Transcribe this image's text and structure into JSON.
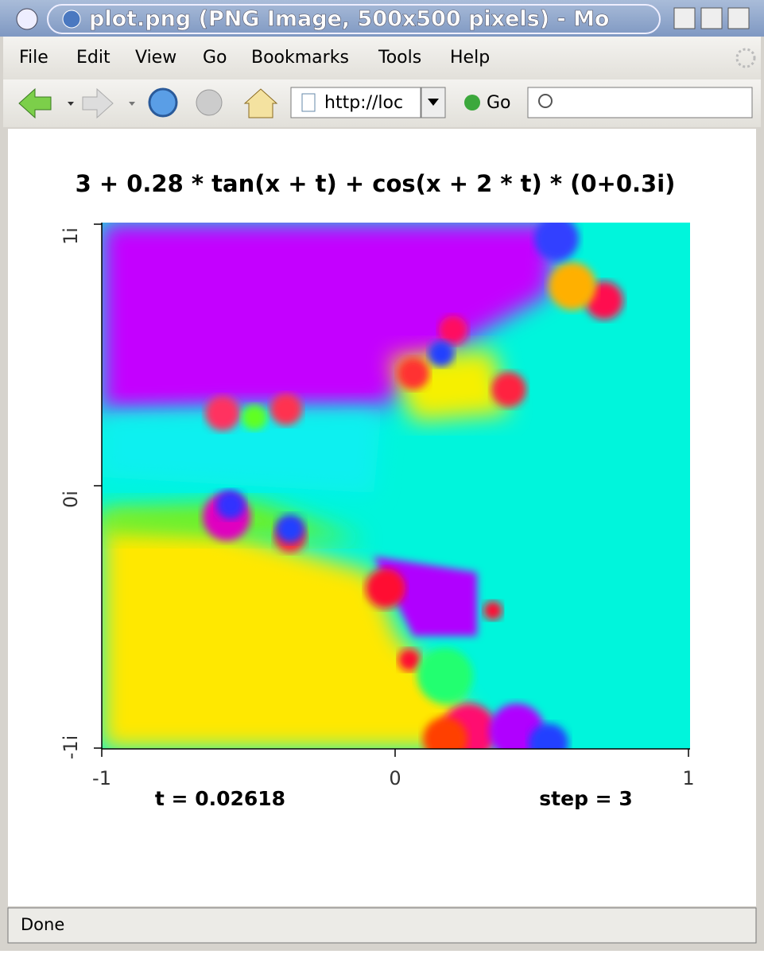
{
  "window": {
    "title": "plot.png (PNG Image, 500x500 pixels) - Mo"
  },
  "menu": [
    "File",
    "Edit",
    "View",
    "Go",
    "Bookmarks",
    "Tools",
    "Help"
  ],
  "toolbar": {
    "url": "http://loc",
    "go": "Go"
  },
  "plot": {
    "title": "3 + 0.28 * tan(x + t) + cos(x + 2 * t) * (0+0.3i)",
    "yticks": [
      "1i",
      "0i",
      "-1i"
    ],
    "xticks": [
      "-1",
      "0",
      "1"
    ],
    "annotations": [
      "t = 0.02618",
      "step = 3"
    ]
  },
  "status": "Done"
}
